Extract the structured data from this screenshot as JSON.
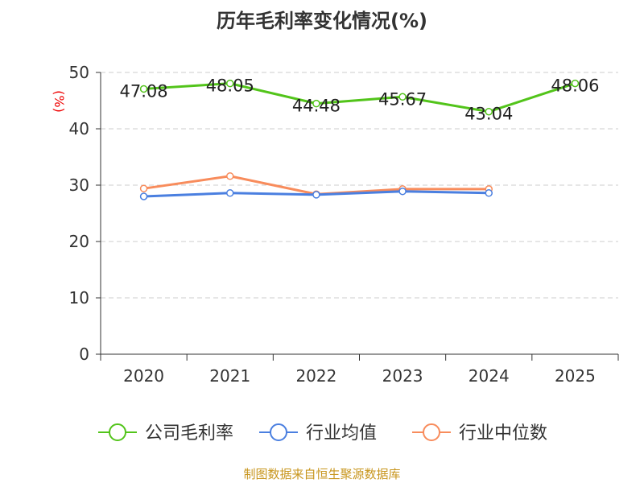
{
  "chart_data": {
    "type": "line",
    "title": "历年毛利率变化情况(%)",
    "ylabel": "(%)",
    "xlabel": "",
    "categories": [
      "2020",
      "2021",
      "2022",
      "2023",
      "2024",
      "2025"
    ],
    "ylim": [
      0,
      50
    ],
    "yticks": [
      0,
      10,
      20,
      30,
      40,
      50
    ],
    "grid": true,
    "legend_position": "bottom",
    "series": [
      {
        "name": "公司毛利率",
        "color": "#52c41a",
        "values": [
          47.08,
          48.05,
          44.48,
          45.67,
          43.04,
          48.06
        ],
        "labels": [
          "47.08",
          "48.05",
          "44.48",
          "45.67",
          "43.04",
          "48.06"
        ]
      },
      {
        "name": "行业均值",
        "color": "#4a7fe0",
        "values": [
          28.0,
          28.6,
          28.3,
          28.9,
          28.6,
          null
        ]
      },
      {
        "name": "行业中位数",
        "color": "#f88c5c",
        "values": [
          29.4,
          31.6,
          28.4,
          29.3,
          29.3,
          null
        ]
      }
    ]
  },
  "source": "制图数据来自恒生聚源数据库"
}
